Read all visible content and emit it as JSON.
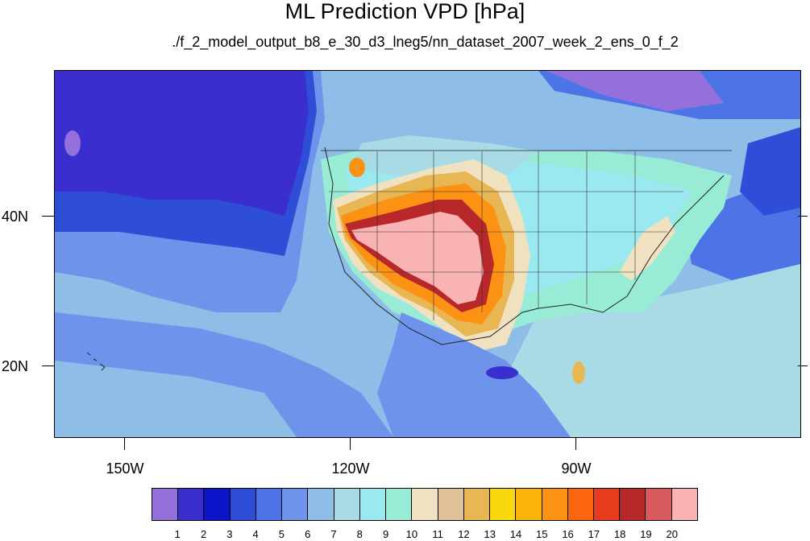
{
  "title": "ML Prediction VPD [hPa]",
  "subtitle": "./f_2_model_output_b8_e_30_d3_lneg5/nn_dataset_2007_week_2_ens_0_f_2",
  "map": {
    "longitude_labels": [
      "150W",
      "120W",
      "90W"
    ],
    "latitude_labels": [
      "40N",
      "20N"
    ]
  },
  "colorbar": {
    "labels": [
      "1",
      "2",
      "3",
      "4",
      "5",
      "6",
      "7",
      "8",
      "9",
      "10",
      "11",
      "12",
      "13",
      "14",
      "15",
      "16",
      "17",
      "18",
      "19",
      "20"
    ],
    "colors": [
      "#9370db",
      "#3a2ecf",
      "#0a14c8",
      "#2e4ed8",
      "#4d74e6",
      "#6e93ea",
      "#8ebde8",
      "#a9dbe6",
      "#9ae9f0",
      "#98ecd6",
      "#f0e2c0",
      "#dfc29a",
      "#e9b654",
      "#fbd70d",
      "#fcb60b",
      "#fc9214",
      "#fc6510",
      "#e63b1c",
      "#b8282a",
      "#d65a5e",
      "#f9b3b3"
    ]
  }
}
